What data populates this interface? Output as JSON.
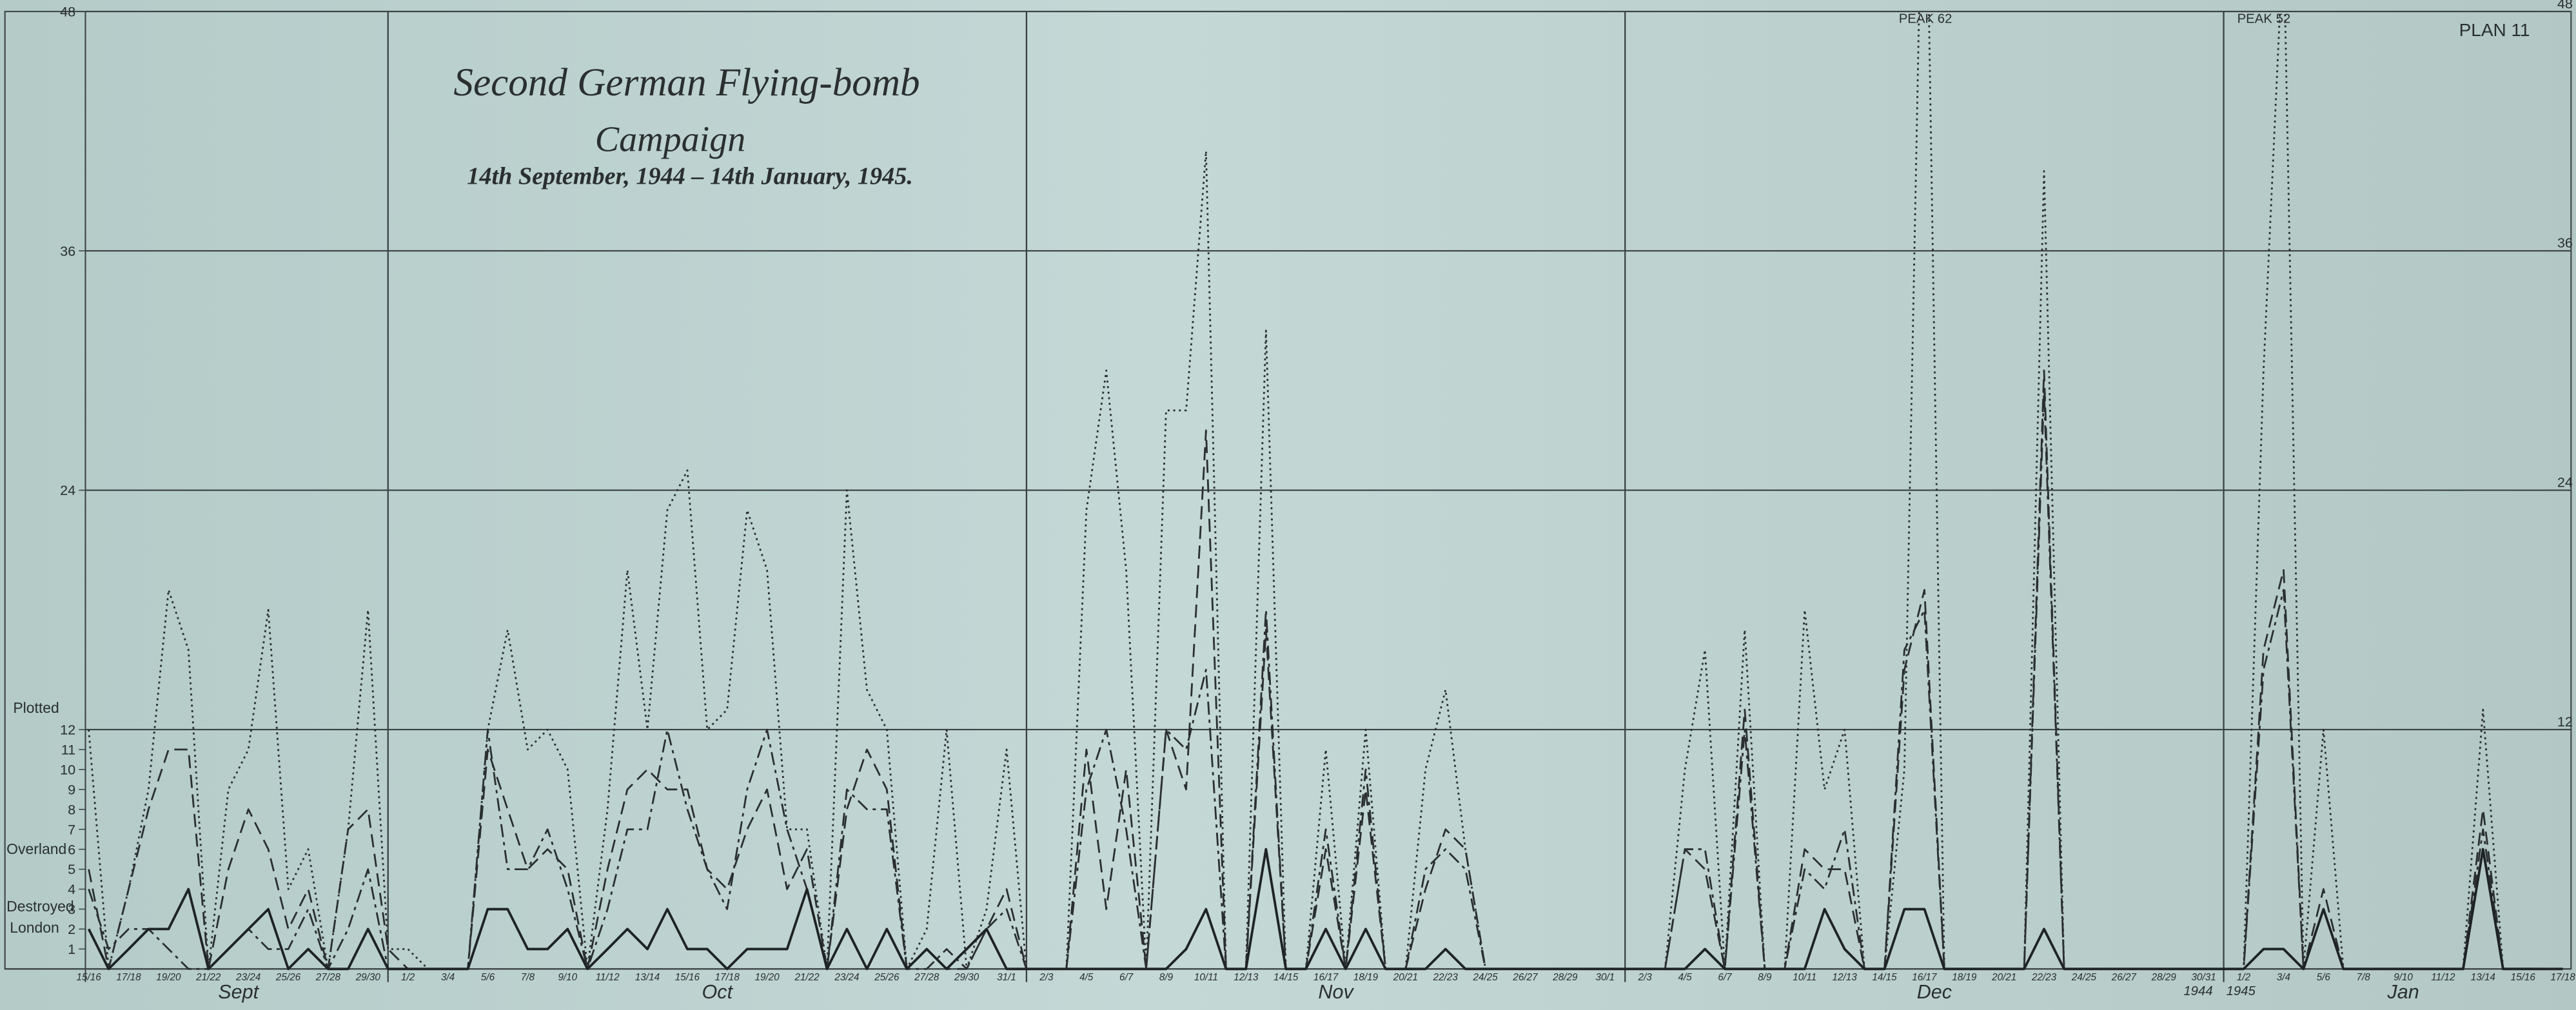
{
  "chart_data": {
    "type": "line",
    "title": [
      "Second German Flying-bomb",
      "Campaign"
    ],
    "subtitle": "14th September, 1944 – 14th January, 1945.",
    "plan": "PLAN 11",
    "annotations": [
      "PEAK 62",
      "PEAK 52"
    ],
    "months": [
      "Sept",
      "Oct",
      "Nov",
      "Dec",
      "Jan"
    ],
    "years": [
      "1944",
      "1945"
    ],
    "categories": [
      "15/16",
      null,
      "17/18",
      null,
      "19/20",
      null,
      "21/22",
      null,
      "23/24",
      null,
      "25/26",
      null,
      "27/28",
      null,
      "29/30",
      null,
      "1/2",
      null,
      "3/4",
      null,
      "5/6",
      null,
      "7/8",
      null,
      "9/10",
      null,
      "11/12",
      null,
      "13/14",
      null,
      "15/16",
      null,
      "17/18",
      null,
      "19/20",
      null,
      "21/22",
      null,
      "23/24",
      null,
      "25/26",
      null,
      "27/28",
      null,
      "29/30",
      null,
      "31/1",
      null,
      "2/3",
      null,
      "4/5",
      null,
      "6/7",
      null,
      "8/9",
      null,
      "10/11",
      null,
      "12/13",
      null,
      "14/15",
      null,
      "16/17",
      null,
      "18/19",
      null,
      "20/21",
      null,
      "22/23",
      null,
      "24/25",
      null,
      "26/27",
      null,
      "28/29",
      null,
      "30/1",
      null,
      "2/3",
      null,
      "4/5",
      null,
      "6/7",
      null,
      "8/9",
      null,
      "10/11",
      null,
      "12/13",
      null,
      "14/15",
      null,
      "16/17",
      null,
      "18/19",
      null,
      "20/21",
      null,
      "22/23",
      null,
      "24/25",
      null,
      "26/27",
      null,
      "28/29",
      null,
      "30/31",
      null,
      "1/2",
      null,
      "3/4",
      null,
      "5/6",
      null,
      "7/8",
      null,
      "9/10",
      null,
      "11/12",
      null,
      "13/14",
      null,
      "15/16",
      null,
      "17/18"
    ],
    "series": [
      {
        "name": "Plotted",
        "color": "#2a2f30",
        "dash": "1.2,2.2",
        "values": [
          12,
          0,
          4,
          9,
          19,
          16,
          0,
          9,
          11,
          18,
          4,
          6,
          0,
          7,
          18,
          1,
          1,
          0,
          0,
          0,
          12,
          17,
          11,
          12,
          10,
          0,
          8,
          20,
          12,
          23,
          25,
          12,
          13,
          23,
          20,
          7,
          7,
          0,
          24,
          14,
          12,
          0,
          2,
          12,
          0,
          3,
          11,
          0,
          0,
          0,
          23,
          30,
          20,
          0,
          28,
          28,
          41,
          0,
          0,
          32,
          0,
          0,
          11,
          0,
          12,
          0,
          0,
          10,
          14,
          6,
          0,
          0,
          0,
          0,
          0,
          0,
          0,
          0,
          0,
          0,
          10,
          16,
          0,
          17,
          0,
          0,
          18,
          9,
          12,
          0,
          0,
          10,
          62,
          0,
          0,
          0,
          0,
          0,
          40,
          0,
          0,
          0,
          0,
          0,
          0,
          0,
          0,
          0,
          0,
          30,
          52,
          0,
          12,
          0,
          0,
          0,
          0,
          0,
          0,
          0,
          13,
          0,
          0,
          0,
          0
        ]
      },
      {
        "name": "Overland",
        "color": "#2a2f30",
        "dash": "8,4",
        "values": [
          5,
          0,
          4,
          8,
          11,
          11,
          0,
          5,
          8,
          6,
          2,
          4,
          0,
          7,
          8,
          1,
          0,
          0,
          0,
          0,
          11,
          8,
          5,
          6,
          5,
          0,
          5,
          9,
          10,
          9,
          9,
          5,
          4,
          7,
          9,
          4,
          6,
          0,
          8,
          11,
          9,
          0,
          1,
          0,
          0,
          2,
          4,
          0,
          0,
          0,
          11,
          3,
          10,
          0,
          12,
          9,
          27,
          0,
          0,
          17,
          0,
          0,
          6,
          0,
          9,
          0,
          0,
          4,
          7,
          6,
          0,
          0,
          0,
          0,
          0,
          0,
          0,
          0,
          0,
          0,
          6,
          5,
          0,
          13,
          0,
          0,
          6,
          5,
          5,
          0,
          0,
          15,
          19,
          0,
          0,
          0,
          0,
          0,
          30,
          0,
          0,
          0,
          0,
          0,
          0,
          0,
          0,
          0,
          0,
          16,
          20,
          0,
          4,
          0,
          0,
          0,
          0,
          0,
          0,
          0,
          8,
          0,
          0,
          0,
          0
        ]
      },
      {
        "name": "Destroyed",
        "color": "#2a2f30",
        "dash": "8,3,2,3",
        "values": [
          4,
          1,
          2,
          2,
          1,
          0,
          0,
          1,
          2,
          1,
          1,
          3,
          0,
          2,
          5,
          0,
          0,
          0,
          0,
          0,
          12,
          5,
          5,
          7,
          4,
          0,
          3,
          7,
          7,
          12,
          8,
          5,
          3,
          9,
          12,
          7,
          4,
          0,
          9,
          8,
          8,
          0,
          0,
          1,
          0,
          2,
          3,
          0,
          0,
          0,
          9,
          12,
          7,
          0,
          12,
          11,
          15,
          0,
          0,
          18,
          0,
          0,
          7,
          0,
          10,
          0,
          0,
          5,
          6,
          5,
          0,
          0,
          0,
          0,
          0,
          0,
          0,
          0,
          0,
          0,
          6,
          6,
          0,
          12,
          0,
          0,
          5,
          4,
          7,
          0,
          0,
          16,
          18,
          0,
          0,
          0,
          0,
          0,
          29,
          0,
          0,
          0,
          0,
          0,
          0,
          0,
          0,
          0,
          0,
          15,
          19,
          0,
          3,
          0,
          0,
          0,
          0,
          0,
          0,
          0,
          7,
          0,
          0,
          0,
          0
        ]
      },
      {
        "name": "London",
        "color": "#1e2324",
        "dash": "none",
        "values": [
          2,
          0,
          1,
          2,
          2,
          4,
          0,
          1,
          2,
          3,
          0,
          1,
          0,
          0,
          2,
          0,
          0,
          0,
          0,
          0,
          3,
          3,
          1,
          1,
          2,
          0,
          1,
          2,
          1,
          3,
          1,
          1,
          0,
          1,
          1,
          1,
          4,
          0,
          2,
          0,
          2,
          0,
          1,
          0,
          1,
          2,
          0,
          0,
          0,
          0,
          0,
          0,
          0,
          0,
          0,
          1,
          3,
          0,
          0,
          6,
          0,
          0,
          2,
          0,
          2,
          0,
          0,
          0,
          1,
          0,
          0,
          0,
          0,
          0,
          0,
          0,
          0,
          0,
          0,
          0,
          0,
          1,
          0,
          0,
          0,
          0,
          0,
          3,
          1,
          0,
          0,
          3,
          3,
          0,
          0,
          0,
          0,
          0,
          2,
          0,
          0,
          0,
          0,
          0,
          0,
          0,
          0,
          0,
          0,
          1,
          1,
          0,
          3,
          0,
          0,
          0,
          0,
          0,
          0,
          0,
          6,
          0,
          0,
          0,
          0
        ]
      }
    ],
    "ylim": [
      0,
      48
    ],
    "yticks": [
      1,
      2,
      3,
      4,
      5,
      6,
      7,
      8,
      9,
      10,
      11,
      12,
      24,
      36,
      48
    ],
    "y2lim": [
      0,
      48
    ],
    "y2ticks": [
      12,
      24,
      36,
      48
    ],
    "grid": true
  }
}
